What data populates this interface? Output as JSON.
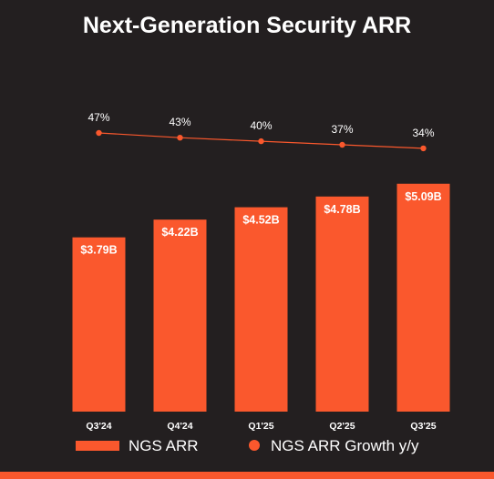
{
  "chart_data": {
    "type": "bar",
    "title": "Next-Generation Security ARR",
    "categories": [
      "Q3'24",
      "Q4'24",
      "Q1'25",
      "Q2'25",
      "Q3'25"
    ],
    "series": [
      {
        "name": "NGS ARR",
        "type": "bar",
        "values": [
          3.79,
          4.22,
          4.52,
          4.78,
          5.09
        ],
        "labels": [
          "$3.79B",
          "$4.22B",
          "$4.52B",
          "$4.78B",
          "$5.09B"
        ]
      },
      {
        "name": "NGS ARR Growth y/y",
        "type": "line",
        "values": [
          47,
          43,
          40,
          37,
          34
        ],
        "labels": [
          "47%",
          "43%",
          "40%",
          "37%",
          "34%"
        ]
      }
    ],
    "legend_position": "bottom",
    "grid": false,
    "colors": {
      "background": "#231f20",
      "bar": "#fa582d",
      "line": "#fa582d",
      "text": "#ffffff",
      "footer_band": "#fa582d"
    }
  }
}
